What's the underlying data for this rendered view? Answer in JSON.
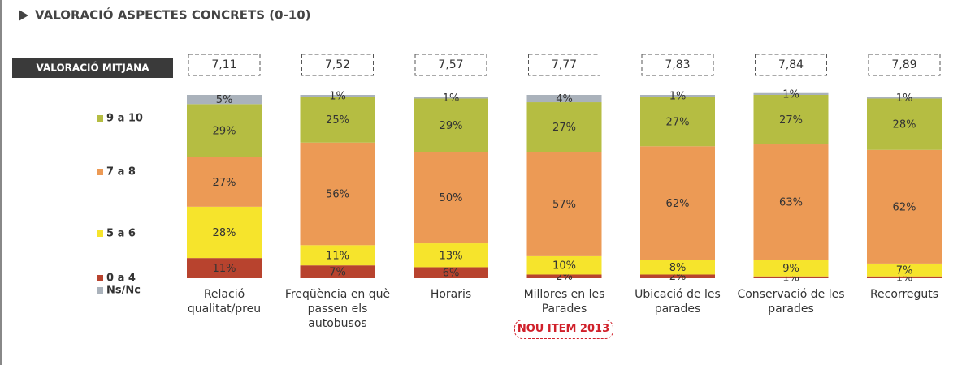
{
  "chart_data": {
    "type": "stacked-bar",
    "title": "VALORACIÓ ASPECTES CONCRETS (0-10)",
    "categories": [
      "Relació qualitat/preu",
      "Freqüència en què passen els autobusos",
      "Horaris",
      "Millores en les Parades",
      "Ubicació de les parades",
      "Conservació de les parades",
      "Recorreguts"
    ],
    "ylim": [
      0,
      100
    ],
    "series": [
      {
        "name": "0 a 4",
        "color": "#b8432e",
        "values": [
          11,
          7,
          6,
          2,
          2,
          1,
          1
        ],
        "value_labels": [
          "11%",
          "7%",
          "6%",
          "2%",
          "2%",
          "1%",
          "1%"
        ]
      },
      {
        "name": "5 a 6",
        "color": "#f6e42c",
        "values": [
          28,
          11,
          13,
          10,
          8,
          9,
          7
        ],
        "value_labels": [
          "28%",
          "11%",
          "13%",
          "10%",
          "8%",
          "9%",
          "7%"
        ]
      },
      {
        "name": "7 a 8",
        "color": "#ec9a55",
        "values": [
          27,
          56,
          50,
          57,
          62,
          63,
          62
        ],
        "value_labels": [
          "27%",
          "56%",
          "50%",
          "57%",
          "62%",
          "63%",
          "62%"
        ]
      },
      {
        "name": "9 a 10",
        "color": "#b5bd42",
        "values": [
          29,
          25,
          29,
          27,
          27,
          27,
          28
        ],
        "value_labels": [
          "29%",
          "25%",
          "29%",
          "27%",
          "27%",
          "27%",
          "28%"
        ]
      },
      {
        "name": "Ns/Nc",
        "color": "#aab2bb",
        "values": [
          5,
          1,
          1,
          4,
          1,
          1,
          1
        ],
        "value_labels": [
          "5%",
          "1%",
          "1%",
          "4%",
          "1%",
          "1%",
          "1%"
        ]
      }
    ],
    "means": {
      "label": "VALORACIÓ MITJANA",
      "values": [
        7.11,
        7.52,
        7.57,
        7.77,
        7.83,
        7.84,
        7.89
      ],
      "value_labels": [
        "7,11",
        "7,52",
        "7,57",
        "7,77",
        "7,83",
        "7,84",
        "7,89"
      ]
    },
    "annotation": "NOU ITEM 2013"
  }
}
